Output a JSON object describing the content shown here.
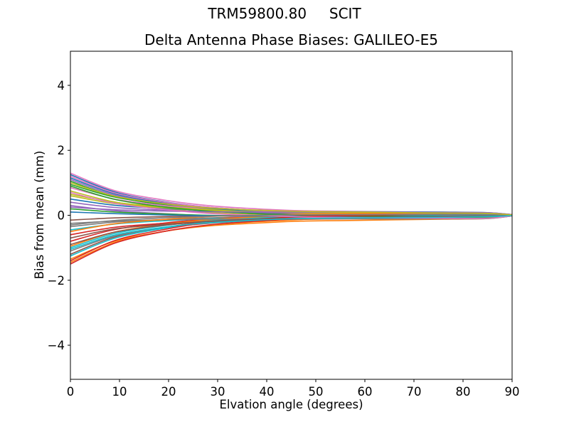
{
  "figure": {
    "suptitle": "TRM59800.80     SCIT",
    "background": "#ffffff",
    "text_color": "#000000"
  },
  "chart_data": {
    "type": "line",
    "title": "Delta Antenna Phase Biases: GALILEO-E5",
    "xlabel": "Elvation angle (degrees)",
    "ylabel": "Bias from mean (mm)",
    "xlim": [
      0,
      90
    ],
    "ylim": [
      -5.05,
      5.05
    ],
    "xticks": [
      0,
      10,
      20,
      30,
      40,
      50,
      60,
      70,
      80,
      90
    ],
    "yticks": [
      -4,
      -2,
      0,
      2,
      4
    ],
    "grid": false,
    "legend_position": "none",
    "color_cycle": [
      "#1f77b4",
      "#ff7f0e",
      "#2ca02c",
      "#d62728",
      "#9467bd",
      "#8c564b",
      "#e377c2",
      "#7f7f7f",
      "#bcbd22",
      "#17becf"
    ],
    "x": [
      0,
      9,
      19,
      28,
      38,
      47,
      57,
      76,
      85,
      90
    ],
    "series": [
      {
        "name": "line-01",
        "color": "#1f77b4",
        "values": [
          1.25,
          0.72,
          0.42,
          0.25,
          0.15,
          0.09,
          0.07,
          0.03,
          0.02,
          0.0
        ]
      },
      {
        "name": "line-02",
        "color": "#ff7f0e",
        "values": [
          -1.45,
          -0.84,
          -0.5,
          -0.31,
          -0.2,
          -0.13,
          -0.1,
          -0.06,
          -0.04,
          -0.01
        ]
      },
      {
        "name": "line-03",
        "color": "#2ca02c",
        "values": [
          0.95,
          0.56,
          0.34,
          0.22,
          0.15,
          0.11,
          0.09,
          0.06,
          0.05,
          0.01
        ]
      },
      {
        "name": "line-04",
        "color": "#d62728",
        "values": [
          -0.6,
          -0.37,
          -0.25,
          -0.18,
          -0.14,
          -0.12,
          -0.11,
          -0.1,
          -0.08,
          -0.02
        ]
      },
      {
        "name": "line-05",
        "color": "#9467bd",
        "values": [
          1.1,
          0.62,
          0.35,
          0.19,
          0.1,
          0.04,
          0.02,
          -0.02,
          -0.02,
          -0.01
        ]
      },
      {
        "name": "line-06",
        "color": "#8c564b",
        "values": [
          -1.2,
          -0.67,
          -0.38,
          -0.2,
          -0.1,
          -0.04,
          -0.01,
          0.02,
          0.03,
          0.01
        ]
      },
      {
        "name": "line-07",
        "color": "#e377c2",
        "values": [
          1.3,
          0.76,
          0.47,
          0.3,
          0.2,
          0.14,
          0.12,
          0.09,
          0.06,
          0.02
        ]
      },
      {
        "name": "line-08",
        "color": "#7f7f7f",
        "values": [
          -0.35,
          -0.21,
          -0.13,
          -0.08,
          -0.05,
          -0.04,
          -0.03,
          -0.02,
          -0.02,
          0.0
        ]
      },
      {
        "name": "line-09",
        "color": "#bcbd22",
        "values": [
          0.75,
          0.41,
          0.21,
          0.09,
          0.02,
          -0.02,
          -0.04,
          -0.06,
          -0.06,
          -0.02
        ]
      },
      {
        "name": "line-10",
        "color": "#17becf",
        "values": [
          -1.0,
          -0.56,
          -0.32,
          -0.17,
          -0.09,
          -0.04,
          -0.01,
          0.02,
          0.02,
          0.01
        ]
      },
      {
        "name": "line-11",
        "color": "#1f77b4",
        "values": [
          0.5,
          0.31,
          0.21,
          0.16,
          0.13,
          0.11,
          0.11,
          0.1,
          0.08,
          0.02
        ]
      },
      {
        "name": "line-12",
        "color": "#ff7f0e",
        "values": [
          -1.35,
          -0.8,
          -0.5,
          -0.33,
          -0.24,
          -0.18,
          -0.16,
          -0.12,
          -0.1,
          -0.02
        ]
      },
      {
        "name": "line-13",
        "color": "#2ca02c",
        "values": [
          1.05,
          0.58,
          0.32,
          0.17,
          0.08,
          0.02,
          0.0,
          -0.03,
          -0.04,
          -0.01
        ]
      },
      {
        "name": "line-14",
        "color": "#d62728",
        "values": [
          -0.8,
          -0.44,
          -0.24,
          -0.12,
          -0.05,
          -0.01,
          0.01,
          0.04,
          0.04,
          0.01
        ]
      },
      {
        "name": "line-15",
        "color": "#9467bd",
        "values": [
          0.3,
          0.14,
          0.05,
          -0.01,
          -0.04,
          -0.06,
          -0.07,
          -0.09,
          -0.08,
          -0.02
        ]
      },
      {
        "name": "line-16",
        "color": "#8c564b",
        "values": [
          -0.15,
          -0.08,
          -0.04,
          -0.02,
          0.0,
          0.01,
          0.01,
          0.02,
          0.02,
          0.0
        ]
      },
      {
        "name": "line-17",
        "color": "#e377c2",
        "values": [
          0.85,
          0.5,
          0.3,
          0.19,
          0.12,
          0.08,
          0.07,
          0.04,
          0.03,
          0.01
        ]
      },
      {
        "name": "line-18",
        "color": "#7f7f7f",
        "values": [
          -1.1,
          -0.64,
          -0.39,
          -0.25,
          -0.16,
          -0.11,
          -0.1,
          -0.07,
          -0.05,
          -0.01
        ]
      },
      {
        "name": "line-19",
        "color": "#bcbd22",
        "values": [
          0.65,
          0.4,
          0.26,
          0.18,
          0.14,
          0.11,
          0.1,
          0.09,
          0.07,
          0.02
        ]
      },
      {
        "name": "line-20",
        "color": "#17becf",
        "values": [
          -0.45,
          -0.27,
          -0.17,
          -0.11,
          -0.08,
          -0.06,
          -0.05,
          -0.04,
          -0.03,
          -0.01
        ]
      },
      {
        "name": "line-21",
        "color": "#1f77b4",
        "values": [
          1.15,
          0.66,
          0.38,
          0.22,
          0.13,
          0.08,
          0.05,
          0.02,
          0.01,
          0.0
        ]
      },
      {
        "name": "line-22",
        "color": "#ff7f0e",
        "values": [
          -0.95,
          -0.52,
          -0.28,
          -0.14,
          -0.05,
          0.0,
          0.02,
          0.05,
          0.06,
          0.01
        ]
      },
      {
        "name": "line-23",
        "color": "#2ca02c",
        "values": [
          0.2,
          0.1,
          0.04,
          0.0,
          -0.02,
          -0.04,
          -0.04,
          -0.05,
          -0.05,
          -0.01
        ]
      },
      {
        "name": "line-24",
        "color": "#d62728",
        "values": [
          -1.5,
          -0.86,
          -0.5,
          -0.3,
          -0.18,
          -0.11,
          -0.08,
          -0.03,
          -0.02,
          0.0
        ]
      },
      {
        "name": "line-25",
        "color": "#9467bd",
        "values": [
          0.4,
          0.24,
          0.16,
          0.11,
          0.08,
          0.06,
          0.06,
          0.05,
          0.04,
          0.01
        ]
      },
      {
        "name": "line-26",
        "color": "#8c564b",
        "values": [
          -0.7,
          -0.42,
          -0.28,
          -0.19,
          -0.14,
          -0.11,
          -0.1,
          -0.09,
          -0.07,
          -0.02
        ]
      },
      {
        "name": "line-27",
        "color": "#e377c2",
        "values": [
          1.2,
          0.69,
          0.41,
          0.25,
          0.15,
          0.1,
          0.07,
          0.04,
          0.02,
          0.01
        ]
      },
      {
        "name": "line-28",
        "color": "#7f7f7f",
        "values": [
          -0.25,
          -0.18,
          -0.14,
          -0.12,
          -0.12,
          -0.11,
          -0.11,
          -0.11,
          -0.1,
          -0.02
        ]
      },
      {
        "name": "line-29",
        "color": "#bcbd22",
        "values": [
          0.6,
          0.36,
          0.23,
          0.15,
          0.11,
          0.08,
          0.08,
          0.06,
          0.05,
          0.01
        ]
      },
      {
        "name": "line-30",
        "color": "#17becf",
        "values": [
          -1.25,
          -0.71,
          -0.4,
          -0.22,
          -0.12,
          -0.06,
          -0.03,
          0.01,
          0.02,
          0.0
        ]
      },
      {
        "name": "line-31",
        "color": "#1f77b4",
        "values": [
          0.1,
          0.05,
          0.01,
          -0.01,
          -0.02,
          -0.03,
          -0.03,
          -0.04,
          -0.03,
          -0.01
        ]
      },
      {
        "name": "line-32",
        "color": "#ff7f0e",
        "values": [
          -0.5,
          -0.26,
          -0.13,
          -0.04,
          0.0,
          0.03,
          0.05,
          0.07,
          0.06,
          0.02
        ]
      },
      {
        "name": "line-33",
        "color": "#2ca02c",
        "values": [
          0.9,
          0.49,
          0.26,
          0.13,
          0.05,
          0.0,
          -0.02,
          -0.05,
          -0.06,
          -0.01
        ]
      },
      {
        "name": "line-34",
        "color": "#d62728",
        "values": [
          -1.4,
          -0.78,
          -0.44,
          -0.23,
          -0.12,
          -0.04,
          -0.01,
          0.03,
          0.04,
          0.01
        ]
      },
      {
        "name": "line-35",
        "color": "#9467bd",
        "values": [
          0.25,
          0.17,
          0.13,
          0.11,
          0.1,
          0.1,
          0.1,
          0.09,
          0.08,
          0.02
        ]
      },
      {
        "name": "line-36",
        "color": "#8c564b",
        "values": [
          -0.9,
          -0.52,
          -0.31,
          -0.19,
          -0.12,
          -0.08,
          -0.06,
          -0.04,
          -0.02,
          -0.01
        ]
      },
      {
        "name": "line-37",
        "color": "#e377c2",
        "values": [
          0.7,
          0.37,
          0.18,
          0.06,
          0.0,
          -0.05,
          -0.07,
          -0.09,
          -0.09,
          -0.02
        ]
      },
      {
        "name": "line-38",
        "color": "#7f7f7f",
        "values": [
          -0.3,
          -0.16,
          -0.08,
          -0.03,
          0.0,
          0.01,
          0.02,
          0.03,
          0.03,
          0.01
        ]
      },
      {
        "name": "line-39",
        "color": "#bcbd22",
        "values": [
          1.0,
          0.59,
          0.36,
          0.23,
          0.16,
          0.12,
          0.1,
          0.07,
          0.06,
          0.01
        ]
      },
      {
        "name": "line-40",
        "color": "#17becf",
        "values": [
          -1.05,
          -0.61,
          -0.37,
          -0.23,
          -0.15,
          -0.1,
          -0.08,
          -0.06,
          -0.04,
          -0.01
        ]
      }
    ]
  }
}
